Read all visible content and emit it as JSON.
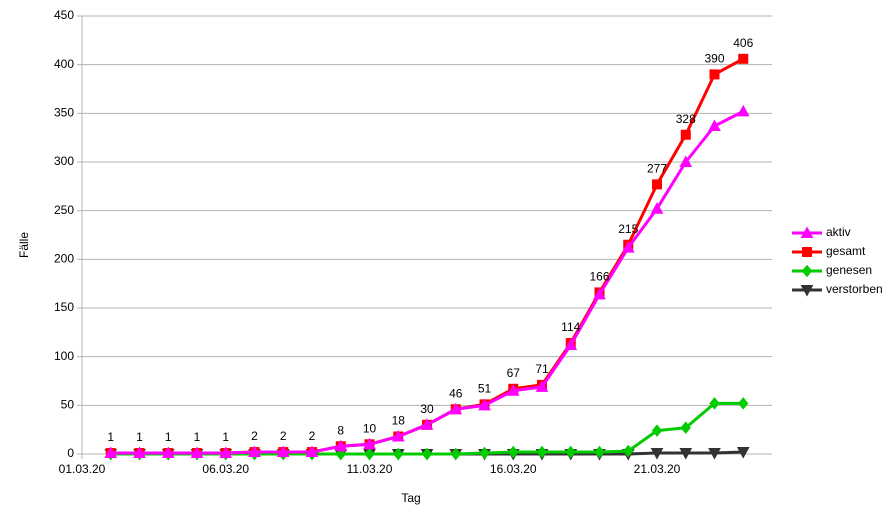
{
  "chart_data": {
    "type": "line",
    "x_label": "Tag",
    "y_label": "Fälle",
    "categories": [
      "01.03.20",
      null,
      null,
      null,
      null,
      "06.03.20",
      null,
      null,
      null,
      null,
      "11.03.20",
      null,
      null,
      null,
      null,
      "16.03.20",
      null,
      null,
      null,
      null,
      "21.03.20",
      null,
      null,
      null
    ],
    "series": [
      {
        "name": "aktiv",
        "color": "#ff00ff",
        "marker": "triangle-up",
        "values": [
          null,
          1,
          1,
          1,
          1,
          1,
          2,
          2,
          2,
          8,
          10,
          18,
          30,
          46,
          50,
          65,
          69,
          112,
          164,
          212,
          252,
          300,
          337,
          352
        ]
      },
      {
        "name": "gesamt",
        "color": "#ff0000",
        "marker": "square",
        "data_labels": true,
        "values": [
          null,
          1,
          1,
          1,
          1,
          1,
          2,
          2,
          2,
          8,
          10,
          18,
          30,
          46,
          51,
          67,
          71,
          114,
          166,
          215,
          277,
          328,
          390,
          406
        ]
      },
      {
        "name": "genesen",
        "color": "#00cc00",
        "marker": "diamond",
        "values": [
          null,
          0,
          0,
          0,
          0,
          0,
          0,
          0,
          0,
          0,
          0,
          0,
          0,
          0,
          1,
          2,
          2,
          2,
          2,
          3,
          24,
          27,
          52,
          52
        ]
      },
      {
        "name": "verstorben",
        "color": "#333333",
        "marker": "triangle-down",
        "values": [
          null,
          0,
          0,
          0,
          0,
          0,
          0,
          0,
          0,
          0,
          0,
          0,
          0,
          0,
          0,
          0,
          0,
          0,
          0,
          0,
          1,
          1,
          1,
          2
        ]
      }
    ],
    "ylim": [
      0,
      450
    ],
    "yticks": [
      0,
      50,
      100,
      150,
      200,
      250,
      300,
      350,
      400,
      450
    ],
    "grid": true,
    "legend": "right"
  }
}
